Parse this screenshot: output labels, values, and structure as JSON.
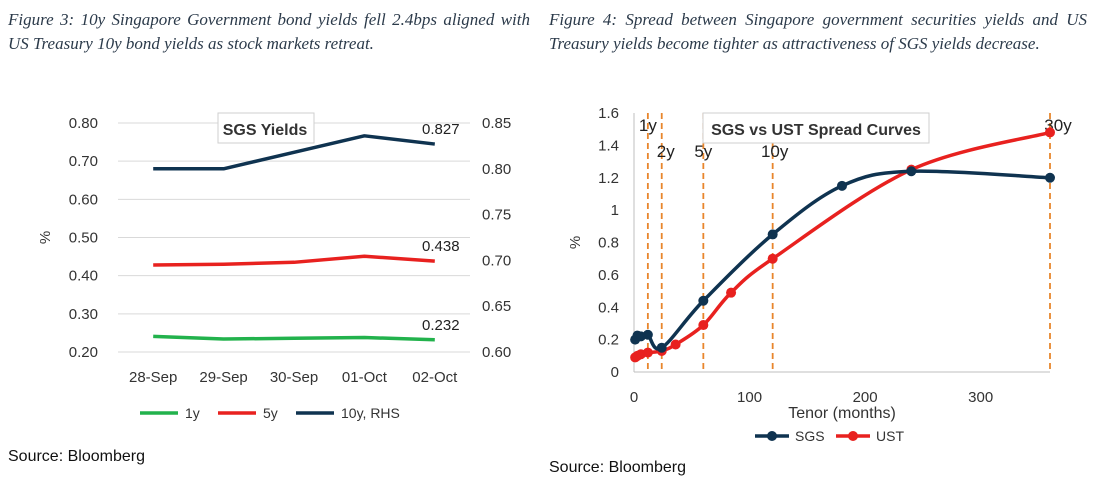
{
  "figures": {
    "left": {
      "caption": "Figure 3: 10y Singapore Government bond yields fell 2.4bps aligned with US Treasury 10y bond yields as stock markets retreat.",
      "source": "Source: Bloomberg"
    },
    "right": {
      "caption": "Figure 4: Spread between Singapore government securities yields and US Treasury yields become tighter as attractiveness of SGS yields decrease.",
      "source": "Source: Bloomberg"
    }
  },
  "chart_data": [
    {
      "type": "line",
      "title": "SGS Yields",
      "ylabel": "%",
      "categories": [
        "28-Sep",
        "29-Sep",
        "30-Sep",
        "01-Oct",
        "02-Oct"
      ],
      "ylim": [
        0.2,
        0.8
      ],
      "yticks": [
        "0.20",
        "0.30",
        "0.40",
        "0.50",
        "0.60",
        "0.70",
        "0.80"
      ],
      "y2lim": [
        0.6,
        0.85
      ],
      "y2ticks": [
        "0.60",
        "0.65",
        "0.70",
        "0.75",
        "0.80",
        "0.85"
      ],
      "legend_position": "bottom",
      "grid": "horizontal",
      "series": [
        {
          "name": "1y",
          "axis": "left",
          "color": "#22b24c",
          "values": [
            0.241,
            0.234,
            0.236,
            0.238,
            0.232
          ],
          "end_label": "0.232"
        },
        {
          "name": "5y",
          "axis": "left",
          "color": "#e8211f",
          "values": [
            0.428,
            0.43,
            0.435,
            0.451,
            0.438
          ],
          "end_label": "0.438"
        },
        {
          "name": "10y, RHS",
          "axis": "right",
          "color": "#0f3350",
          "values": [
            0.8,
            0.8,
            0.818,
            0.836,
            0.827
          ],
          "end_label": "0.827"
        }
      ]
    },
    {
      "type": "line",
      "title": "SGS vs UST Spread Curves",
      "xlabel": "Tenor (months)",
      "ylabel": "%",
      "xlim": [
        0,
        360
      ],
      "xticks": [
        0,
        100,
        200,
        300
      ],
      "ylim": [
        0,
        1.6
      ],
      "yticks": [
        "0",
        "0.2",
        "0.4",
        "0.6",
        "0.8",
        "1",
        "1.2",
        "1.4",
        "1.6"
      ],
      "legend_position": "bottom",
      "grid": "none",
      "series": [
        {
          "name": "SGS",
          "color": "#0f3350",
          "x": [
            1,
            3,
            6,
            12,
            24,
            60,
            120,
            180,
            240,
            360
          ],
          "y": [
            0.2,
            0.225,
            0.22,
            0.23,
            0.15,
            0.44,
            0.85,
            1.15,
            1.24,
            1.2
          ]
        },
        {
          "name": "UST",
          "color": "#e8211f",
          "x": [
            1,
            3,
            6,
            12,
            24,
            36,
            60,
            84,
            120,
            240,
            360
          ],
          "y": [
            0.09,
            0.1,
            0.11,
            0.12,
            0.13,
            0.17,
            0.29,
            0.49,
            0.7,
            1.25,
            1.48
          ]
        }
      ],
      "reference_lines": [
        {
          "x": 12,
          "label": "1y"
        },
        {
          "x": 24,
          "label": "2y"
        },
        {
          "x": 60,
          "label": "5y"
        },
        {
          "x": 120,
          "label": "10y"
        },
        {
          "x": 360,
          "label": "30y"
        }
      ],
      "reference_color": "#e8862c"
    }
  ]
}
